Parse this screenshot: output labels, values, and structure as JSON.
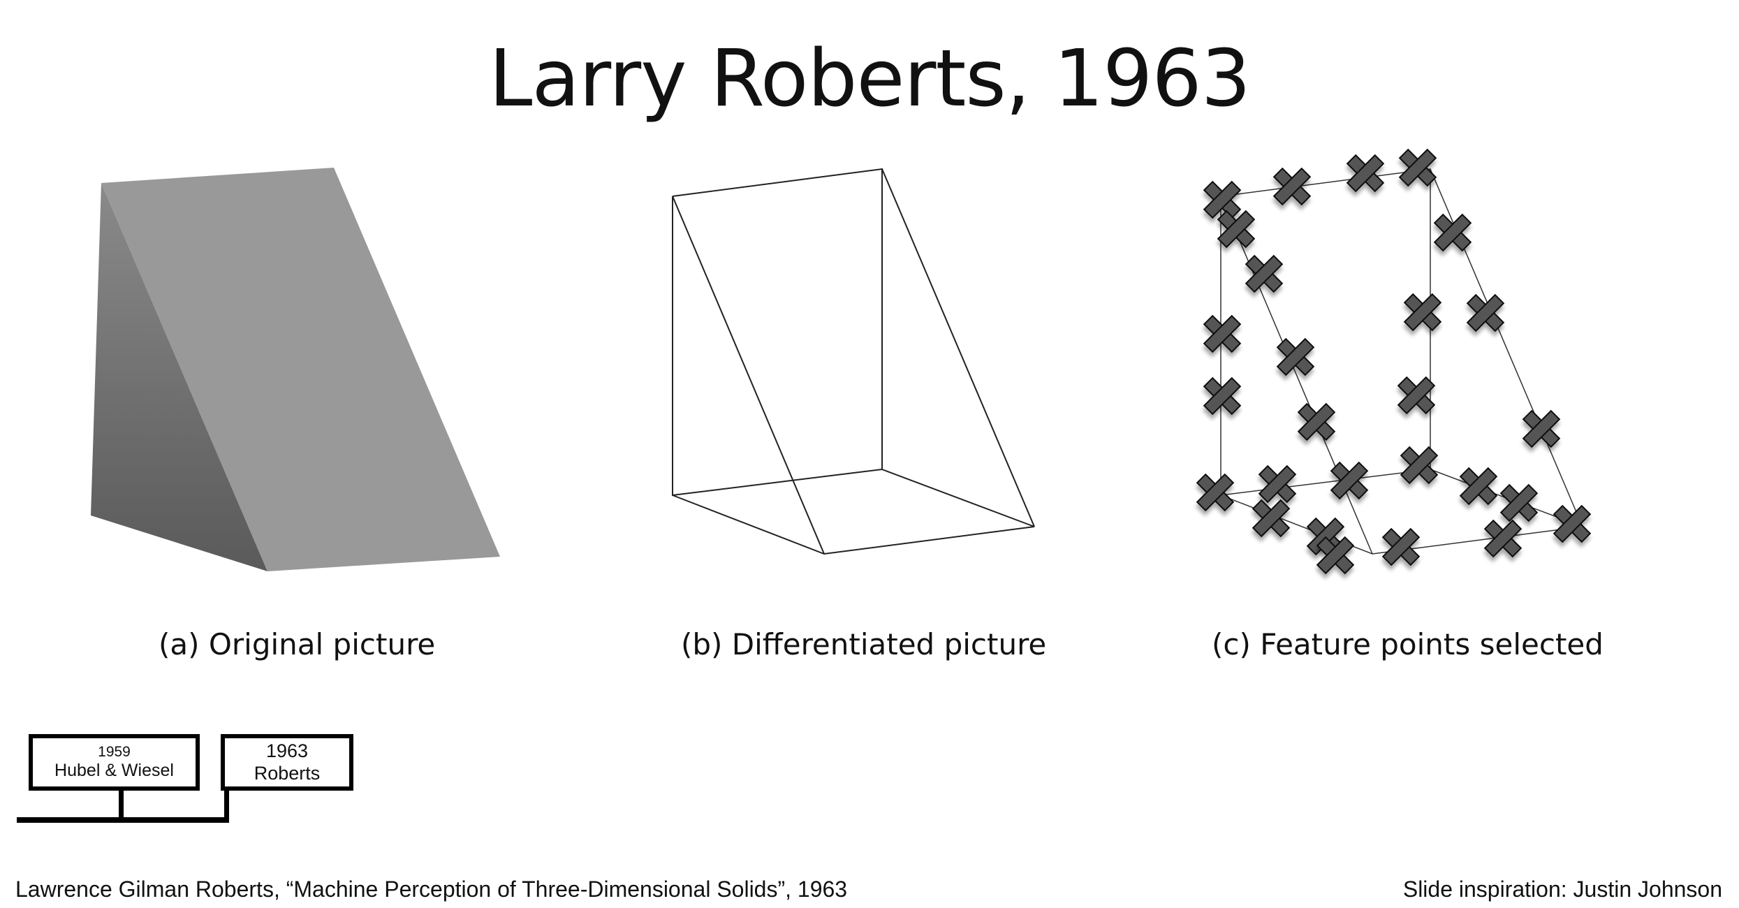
{
  "slide": {
    "title": "Larry Roberts, 1963",
    "captions": {
      "a": "(a) Original picture",
      "b": "(b) Differentiated picture",
      "c": "(c) Feature points selected"
    },
    "timeline": [
      {
        "year": "1959",
        "name": "Hubel & Wiesel"
      },
      {
        "year": "1963",
        "name": "Roberts"
      }
    ],
    "citation": "Lawrence Gilman Roberts, “Machine Perception of Three-Dimensional Solids”, 1963",
    "credit": "Slide inspiration: Justin Johnson"
  },
  "colors": {
    "wedge_front_light": "#8a8a8a",
    "wedge_front_dark": "#5a5a5a",
    "wedge_slope": "#999999",
    "line_drawing": "#222222",
    "feature_marker": "#545454",
    "feature_marker_outline": "#111111"
  },
  "icons": {
    "feature_marker": "cross-marker-icon"
  }
}
